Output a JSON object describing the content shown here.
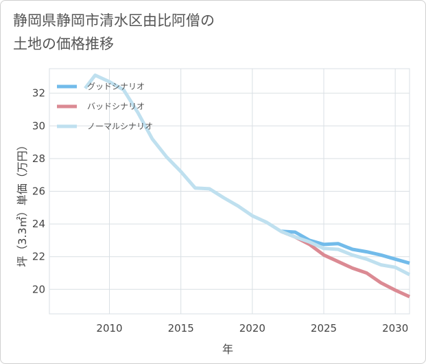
{
  "page": {
    "title": "静岡県静岡市清水区由比阿僧の\n土地の価格推移"
  },
  "chart_data": {
    "type": "line",
    "xlabel": "年",
    "ylabel": "坪（3.3㎡）単価（万円）",
    "xlim": [
      2005.8,
      2031
    ],
    "ylim": [
      18.5,
      33.5
    ],
    "xticks": [
      2010,
      2015,
      2020,
      2025,
      2030
    ],
    "yticks": [
      20,
      22,
      24,
      26,
      28,
      30,
      32
    ],
    "x_tick_labels": [
      "2010",
      "2015",
      "2020",
      "2025",
      "2030"
    ],
    "y_tick_labels": [
      "20",
      "22",
      "24",
      "26",
      "28",
      "30",
      "32"
    ],
    "grid": true,
    "legend_position": "top-left",
    "series": [
      {
        "name": "グッドシナリオ",
        "color": "#72bbea",
        "x": [
          2022,
          2023,
          2024,
          2025,
          2026,
          2027,
          2028,
          2029,
          2030,
          2031
        ],
        "y": [
          23.55,
          23.5,
          23.0,
          22.75,
          22.8,
          22.45,
          22.3,
          22.1,
          21.85,
          21.6
        ]
      },
      {
        "name": "バッドシナリオ",
        "color": "#db8a93",
        "x": [
          2022,
          2023,
          2024,
          2025,
          2026,
          2027,
          2028,
          2029,
          2030,
          2031
        ],
        "y": [
          23.55,
          23.2,
          22.75,
          22.1,
          21.7,
          21.3,
          21.0,
          20.4,
          19.95,
          19.55
        ]
      },
      {
        "name": "ノーマルシナリオ",
        "color": "#bfe0ef",
        "x": [
          2008.3,
          2009,
          2010,
          2011,
          2012,
          2013,
          2014,
          2015,
          2016,
          2017,
          2018,
          2019,
          2020,
          2021,
          2022,
          2023,
          2024,
          2025,
          2026,
          2027,
          2028,
          2029,
          2030,
          2031
        ],
        "y": [
          32.3,
          33.1,
          32.7,
          32.2,
          30.8,
          29.2,
          28.1,
          27.2,
          26.2,
          26.15,
          25.6,
          25.1,
          24.5,
          24.1,
          23.55,
          23.2,
          22.9,
          22.5,
          22.45,
          22.1,
          21.85,
          21.5,
          21.35,
          20.9
        ]
      }
    ]
  }
}
